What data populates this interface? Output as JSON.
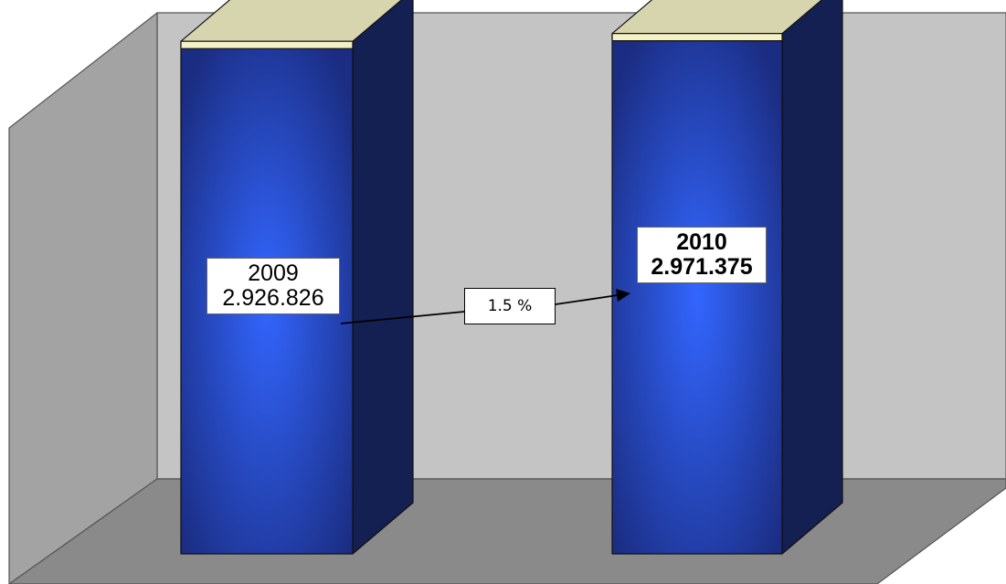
{
  "chart_data": {
    "type": "bar",
    "categories": [
      "2009",
      "2010"
    ],
    "values": [
      2926826,
      2971375
    ],
    "value_labels": [
      "2.926.826",
      "2.971.375"
    ],
    "change_label": "1.5 %",
    "ylim": [
      0,
      3100000
    ],
    "three_d": true,
    "grid": false,
    "legend": "none"
  },
  "colors": {
    "back_wall": "#c4c4c4",
    "side_wall": "#a3a3a3",
    "floor": "#8a8a8a",
    "bar_front_edge": "#1b2d82",
    "bar_front_center": "#3366ff",
    "bar_side": "#141f52",
    "bar_top": "#d7d5ae",
    "bar_top_edge": "#f4f1c4"
  }
}
